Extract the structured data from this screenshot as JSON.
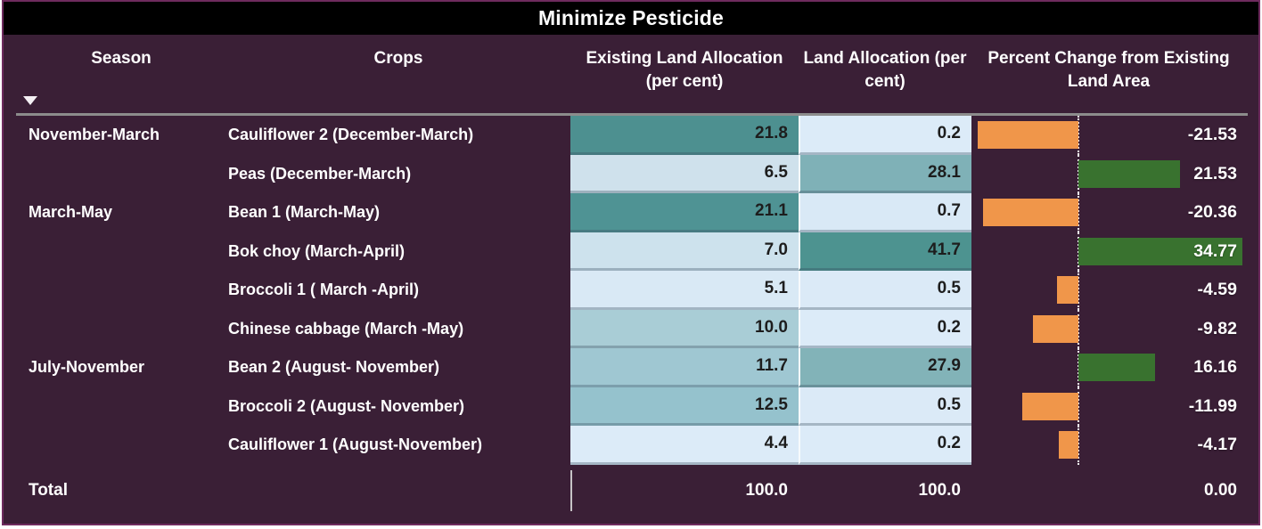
{
  "title": "Minimize Pesticide",
  "header": {
    "season": "Season",
    "crops": "Crops",
    "existing": "Existing Land Allocation (per cent)",
    "alloc": "Land Allocation (per cent)",
    "change": "Percent Change from Existing Land Area"
  },
  "sort_icon": "triangle-down-icon",
  "rows": [
    {
      "season": "November-March",
      "crop": "Cauliflower 2 (December-March)",
      "existing": "21.8",
      "alloc": "0.2",
      "change": "-21.53",
      "change_value": -21.53,
      "existing_color": "#4d9090",
      "alloc_color": "#dcebf8"
    },
    {
      "season": "",
      "crop": "Peas (December-March)",
      "existing": "6.5",
      "alloc": "28.1",
      "change": "21.53",
      "change_value": 21.53,
      "existing_color": "#cfe1ec",
      "alloc_color": "#7fb1b7"
    },
    {
      "season": "March-May",
      "crop": "Bean 1 (March-May)",
      "existing": "21.1",
      "alloc": "0.7",
      "change": "-20.36",
      "change_value": -20.36,
      "existing_color": "#4f9394",
      "alloc_color": "#d9e9f6"
    },
    {
      "season": "",
      "crop": "Bok choy (March-April)",
      "existing": "7.0",
      "alloc": "41.7",
      "change": "34.77",
      "change_value": 34.77,
      "existing_color": "#cde2ed",
      "alloc_color": "#4d9390"
    },
    {
      "season": "",
      "crop": "Broccoli 1 ( March -April)",
      "existing": "5.1",
      "alloc": "0.5",
      "change": "-4.59",
      "change_value": -4.59,
      "existing_color": "#d9e9f5",
      "alloc_color": "#dbeaf7"
    },
    {
      "season": "",
      "crop": "Chinese cabbage (March -May)",
      "existing": "10.0",
      "alloc": "0.2",
      "change": "-9.82",
      "change_value": -9.82,
      "existing_color": "#a9cdd6",
      "alloc_color": "#dcebf8"
    },
    {
      "season": "July-November",
      "crop": "Bean 2 (August- November)",
      "existing": "11.7",
      "alloc": "27.9",
      "change": "16.16",
      "change_value": 16.16,
      "existing_color": "#9fc7d2",
      "alloc_color": "#82b3b8"
    },
    {
      "season": "",
      "crop": "Broccoli 2 (August- November)",
      "existing": "12.5",
      "alloc": "0.5",
      "change": "-11.99",
      "change_value": -11.99,
      "existing_color": "#95c2cd",
      "alloc_color": "#dbeaf7"
    },
    {
      "season": "",
      "crop": "Cauliflower 1 (August-November)",
      "existing": "4.4",
      "alloc": "0.2",
      "change": "-4.17",
      "change_value": -4.17,
      "existing_color": "#dcebf8",
      "alloc_color": "#dcebf8"
    }
  ],
  "total": {
    "label": "Total",
    "existing": "100.0",
    "alloc": "100.0",
    "change": "0.00"
  },
  "colors": {
    "background": "#3a1f36",
    "title_bar": "#000000",
    "positive_bar": "#39722f",
    "negative_bar": "#f0964a",
    "header_rule": "#8c8c8c",
    "heat_high": "#4d9190",
    "heat_low": "#dcebf8"
  },
  "chart_data": {
    "type": "table",
    "title": "Minimize Pesticide",
    "columns": [
      "Season",
      "Crops",
      "Existing Land Allocation (per cent)",
      "Land Allocation (per cent)",
      "Percent Change from Existing Land Area"
    ],
    "rows": [
      [
        "November-March",
        "Cauliflower 2 (December-March)",
        21.8,
        0.2,
        -21.53
      ],
      [
        "",
        "Peas (December-March)",
        6.5,
        28.1,
        21.53
      ],
      [
        "March-May",
        "Bean 1 (March-May)",
        21.1,
        0.7,
        -20.36
      ],
      [
        "",
        "Bok choy (March-April)",
        7.0,
        41.7,
        34.77
      ],
      [
        "",
        "Broccoli 1 ( March -April)",
        5.1,
        0.5,
        -4.59
      ],
      [
        "",
        "Chinese cabbage (March -May)",
        10.0,
        0.2,
        -9.82
      ],
      [
        "July-November",
        "Bean 2 (August- November)",
        11.7,
        27.9,
        16.16
      ],
      [
        "",
        "Broccoli 2 (August- November)",
        12.5,
        0.5,
        -11.99
      ],
      [
        "",
        "Cauliflower 1 (August-November)",
        4.4,
        0.2,
        -4.17
      ]
    ],
    "total_row": [
      "Total",
      "",
      100.0,
      100.0,
      0.0
    ],
    "bar_scale": {
      "min": -21.53,
      "max": 34.77
    },
    "heatmap_columns": [
      "Existing Land Allocation (per cent)",
      "Land Allocation (per cent)"
    ],
    "bar_column": "Percent Change from Existing Land Area",
    "legend_position": "none",
    "grid": false
  }
}
